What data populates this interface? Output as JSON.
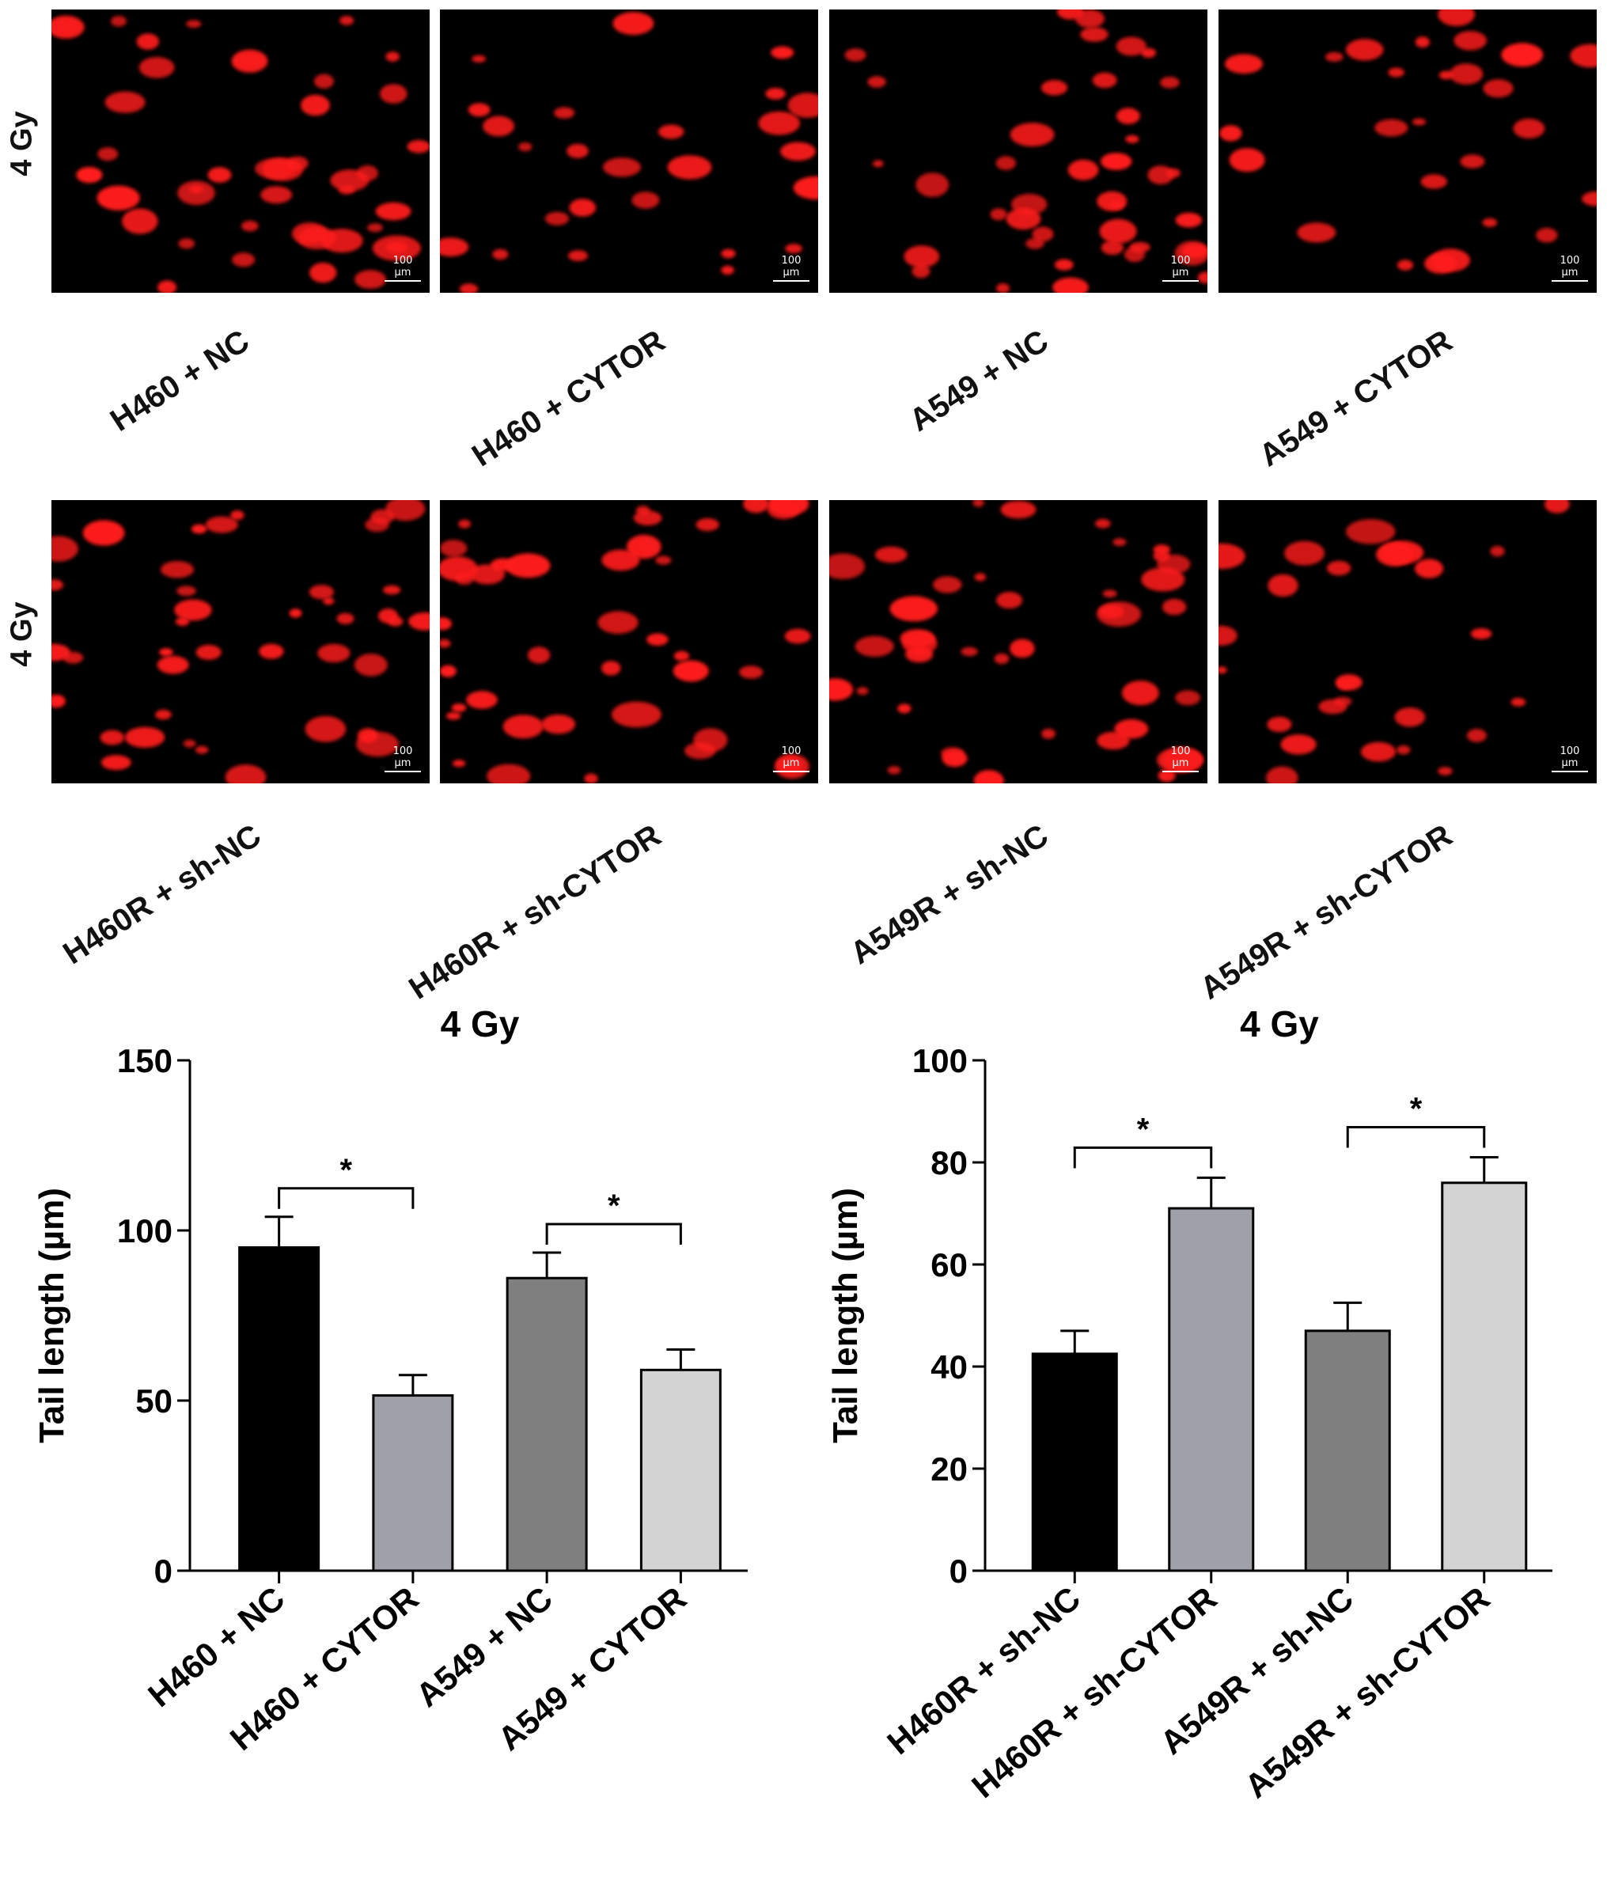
{
  "figure": {
    "row_label": "4 Gy",
    "scale_bar": "100 µm",
    "top_row": [
      "H460 + NC",
      "H460 + CYTOR",
      "A549 + NC",
      "A549 + CYTOR"
    ],
    "bottom_row": [
      "H460R + sh-NC",
      "H460R + sh-CYTOR",
      "A549R + sh-NC",
      "A549R + sh-CYTOR"
    ],
    "spot_color": "#ff1a1a"
  },
  "chart_data": [
    {
      "type": "bar",
      "title": "4 Gy",
      "xlabel": "",
      "ylabel": "Tail length (µm)",
      "ylim": [
        0,
        150
      ],
      "yticks": [
        0,
        50,
        100,
        150
      ],
      "categories": [
        "H460 + NC",
        "H460 + CYTOR",
        "A549 + NC",
        "A549 + CYTOR"
      ],
      "values": [
        95,
        51.5,
        86,
        59
      ],
      "errors": [
        9,
        6,
        7.5,
        6
      ],
      "colors": [
        "#000000",
        "#a0a0a8",
        "#7f7f7f",
        "#d3d3d3"
      ],
      "significance": [
        {
          "from": 0,
          "to": 1,
          "label": "*"
        },
        {
          "from": 2,
          "to": 3,
          "label": "*"
        }
      ]
    },
    {
      "type": "bar",
      "title": "4 Gy",
      "xlabel": "",
      "ylabel": "Tail length (µm)",
      "ylim": [
        0,
        100
      ],
      "yticks": [
        0,
        20,
        40,
        60,
        80,
        100
      ],
      "categories": [
        "H460R + sh-NC",
        "H460R + sh-CYTOR",
        "A549R + sh-NC",
        "A549R + sh-CYTOR"
      ],
      "values": [
        42.5,
        71,
        47,
        76
      ],
      "errors": [
        4.5,
        6,
        5.5,
        5
      ],
      "colors": [
        "#000000",
        "#a0a0a8",
        "#7f7f7f",
        "#d3d3d3"
      ],
      "significance": [
        {
          "from": 0,
          "to": 1,
          "label": "*"
        },
        {
          "from": 2,
          "to": 3,
          "label": "*"
        }
      ]
    }
  ]
}
